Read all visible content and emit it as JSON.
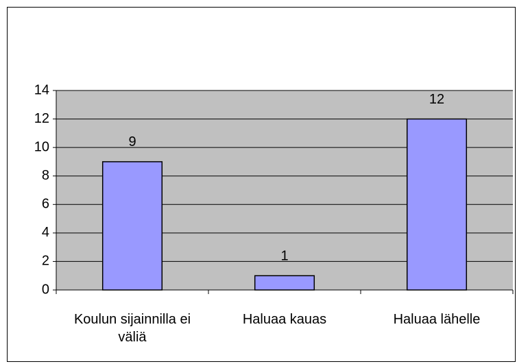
{
  "chart_data": {
    "type": "bar",
    "categories": [
      "Koulun sijainnilla ei väliä",
      "Haluaa kauas",
      "Haluaa lähelle"
    ],
    "values": [
      9,
      1,
      12
    ],
    "color": "#9999ff",
    "ylim": [
      0,
      14
    ],
    "yticks": [
      0,
      2,
      4,
      6,
      8,
      10,
      12,
      14
    ],
    "grid": true
  }
}
